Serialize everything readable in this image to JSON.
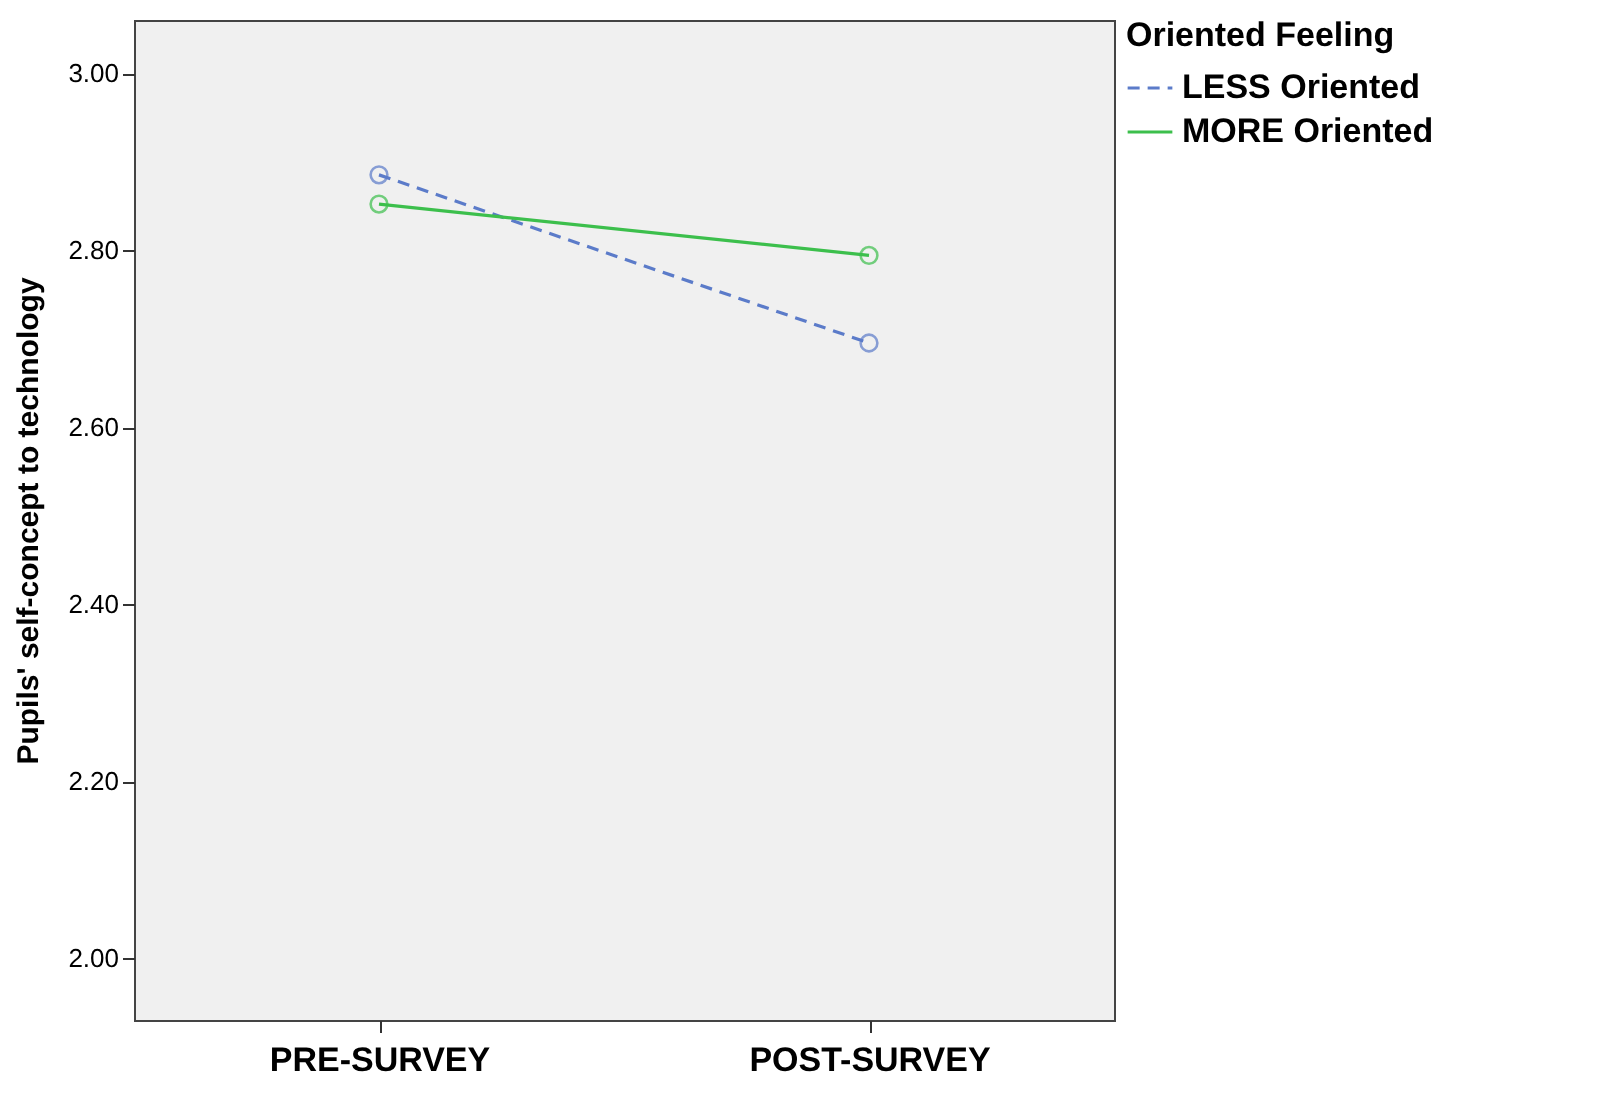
{
  "chart_data": {
    "type": "line",
    "ylabel": "Pupils' self-concept to technology",
    "legend_title": "Oriented Feeling",
    "categories": [
      "PRE-SURVEY",
      "POST-SURVEY"
    ],
    "series": [
      {
        "name": "LESS Oriented",
        "color": "#5b7bc9",
        "line_style": "dashed",
        "values": [
          2.885,
          2.695
        ]
      },
      {
        "name": "MORE Oriented",
        "color": "#3cbf4c",
        "line_style": "solid",
        "values": [
          2.852,
          2.794
        ]
      }
    ],
    "ylim": [
      1.93,
      3.06
    ],
    "yticks": [
      {
        "value": 2.0,
        "label": "2.00"
      },
      {
        "value": 2.2,
        "label": "2.20"
      },
      {
        "value": 2.4,
        "label": "2.40"
      },
      {
        "value": 2.6,
        "label": "2.60"
      },
      {
        "value": 2.8,
        "label": "2.80"
      },
      {
        "value": 3.0,
        "label": "3.00"
      }
    ],
    "marker": "circle",
    "legend": "top right",
    "grid": false
  }
}
